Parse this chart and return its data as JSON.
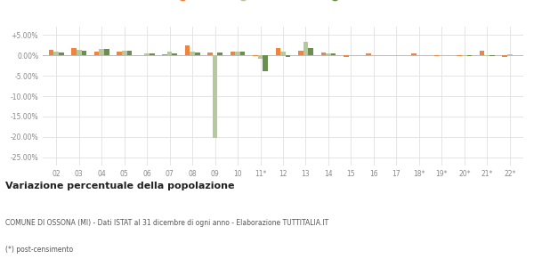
{
  "categories": [
    "02",
    "03",
    "04",
    "05",
    "06",
    "07",
    "08",
    "09",
    "10",
    "11*",
    "12",
    "13",
    "14",
    "15",
    "16",
    "17",
    "18*",
    "19*",
    "20*",
    "21*",
    "22*"
  ],
  "ossona": [
    1.4,
    1.8,
    1.0,
    0.9,
    0.1,
    0.2,
    2.5,
    0.7,
    1.0,
    -0.1,
    1.7,
    1.1,
    0.6,
    -0.4,
    0.4,
    0.0,
    0.4,
    -0.1,
    -0.2,
    1.1,
    -0.5
  ],
  "provincia": [
    0.8,
    1.4,
    1.5,
    1.2,
    0.5,
    0.9,
    0.9,
    -20.2,
    0.9,
    -0.9,
    0.8,
    3.2,
    0.5,
    0.0,
    0.0,
    0.0,
    0.1,
    0.0,
    -0.1,
    -0.2,
    0.3
  ],
  "lombardia": [
    0.6,
    1.1,
    1.6,
    1.1,
    0.4,
    0.5,
    0.7,
    0.6,
    0.8,
    -3.8,
    -0.5,
    1.8,
    0.4,
    0.0,
    0.0,
    0.0,
    0.1,
    0.0,
    -0.1,
    -0.3,
    0.1
  ],
  "ossona_color": "#f0843c",
  "provincia_color": "#b5c99a",
  "lombardia_color": "#6b8e4e",
  "bg_color": "#ffffff",
  "grid_color": "#e0e0e0",
  "title": "Variazione percentuale della popolazione",
  "footer1": "COMUNE DI OSSONA (MI) - Dati ISTAT al 31 dicembre di ogni anno - Elaborazione TUTTITALIA.IT",
  "footer2": "(*) post-censimento",
  "ylim": [
    -27,
    7
  ],
  "yticks": [
    5,
    0,
    -5,
    -10,
    -15,
    -20,
    -25
  ],
  "ytick_labels": [
    "+5.00%",
    "0.00%",
    "-5.00%",
    "-10.00%",
    "-15.00%",
    "-20.00%",
    "-25.00%"
  ]
}
